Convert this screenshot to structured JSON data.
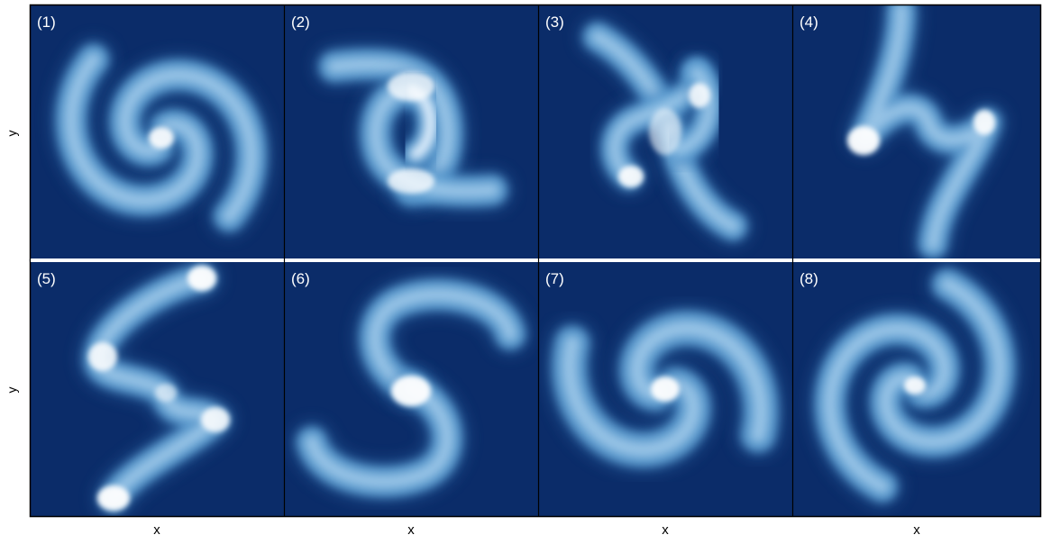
{
  "axes": {
    "x_label": "x",
    "y_label": "y"
  },
  "colors": {
    "background": "#0b2c69",
    "frame": "#000000",
    "divider": "#ffffff"
  },
  "panels": [
    {
      "label": "(1)",
      "pattern": "two-arm-spiral-ccw-tight"
    },
    {
      "label": "(2)",
      "pattern": "s-fold-bright-overlap"
    },
    {
      "label": "(3)",
      "pattern": "crossed-arcs-knot"
    },
    {
      "label": "(4)",
      "pattern": "zigzag-vertical-tube"
    },
    {
      "label": "(5)",
      "pattern": "zigzag-diagonal-tube"
    },
    {
      "label": "(6)",
      "pattern": "s-curve-center-blob"
    },
    {
      "label": "(7)",
      "pattern": "two-arm-spiral-open"
    },
    {
      "label": "(8)",
      "pattern": "two-arm-spiral-tight"
    }
  ]
}
